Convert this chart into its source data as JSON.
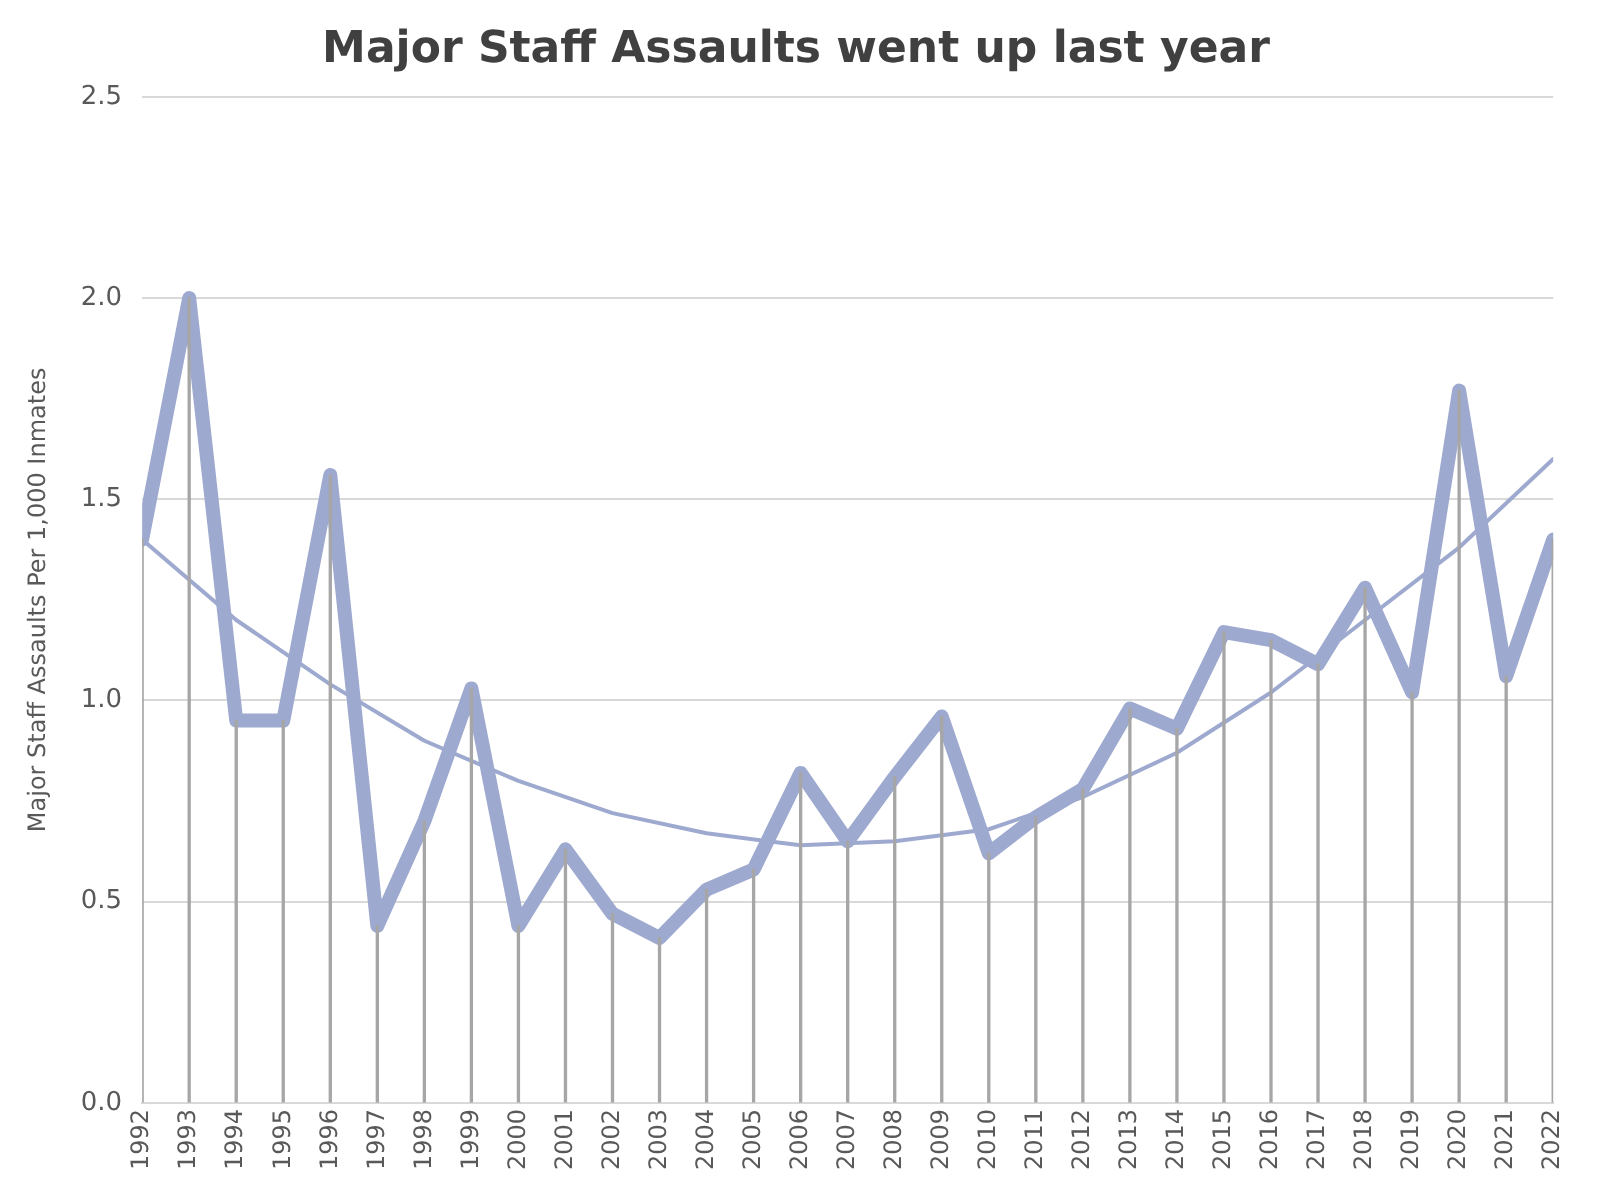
{
  "chart_data": {
    "type": "line",
    "title": "Major Staff Assaults went up last year",
    "ylabel": "Major Staff Assaults Per 1,000 Inmates",
    "xlim": [
      1992,
      2022
    ],
    "xticks": [
      1992,
      1993,
      1994,
      1995,
      1996,
      1997,
      1998,
      1999,
      2000,
      2001,
      2002,
      2003,
      2004,
      2005,
      2006,
      2007,
      2008,
      2009,
      2010,
      2011,
      2012,
      2013,
      2014,
      2015,
      2016,
      2017,
      2018,
      2019,
      2020,
      2021,
      2022
    ],
    "ylim": [
      0,
      2.5
    ],
    "yticks": [
      {
        "value": 0,
        "label": "0.0"
      },
      {
        "value": 0.5,
        "label": "0.5"
      },
      {
        "value": 1,
        "label": "1.0"
      },
      {
        "value": 1.5,
        "label": "1.5"
      },
      {
        "value": 2,
        "label": "2.0"
      },
      {
        "value": 2.5,
        "label": "2.5"
      }
    ],
    "grid": "y",
    "legend": false,
    "marker": "none",
    "series": [
      {
        "type": "bar",
        "color": "#a6a6a6",
        "x": [
          1992,
          1993,
          1994,
          1995,
          1996,
          1997,
          1998,
          1999,
          2000,
          2001,
          2002,
          2003,
          2004,
          2005,
          2006,
          2007,
          2008,
          2009,
          2010,
          2011,
          2012,
          2013,
          2014,
          2015,
          2016,
          2017,
          2018,
          2019,
          2020,
          2021,
          2022
        ],
        "values": [
          1.4,
          2.0,
          0.95,
          0.95,
          1.56,
          0.44,
          0.7,
          1.03,
          0.44,
          0.63,
          0.47,
          0.41,
          0.53,
          0.58,
          0.82,
          0.65,
          0.81,
          0.96,
          0.62,
          0.71,
          0.78,
          0.98,
          0.93,
          1.17,
          1.15,
          1.09,
          1.28,
          1.02,
          1.77,
          1.06,
          1.4
        ]
      },
      {
        "color": "#9ea9cf",
        "x": [
          1992,
          1993,
          1994,
          1995,
          1996,
          1997,
          1998,
          1999,
          2000,
          2001,
          2002,
          2003,
          2004,
          2005,
          2006,
          2007,
          2008,
          2009,
          2010,
          2011,
          2012,
          2013,
          2014,
          2015,
          2016,
          2017,
          2018,
          2019,
          2020,
          2021,
          2022
        ],
        "values": [
          1.4,
          2.0,
          0.95,
          0.95,
          1.56,
          0.44,
          0.7,
          1.03,
          0.44,
          0.63,
          0.47,
          0.41,
          0.53,
          0.58,
          0.82,
          0.65,
          0.81,
          0.96,
          0.62,
          0.71,
          0.78,
          0.98,
          0.93,
          1.17,
          1.15,
          1.09,
          1.28,
          1.02,
          1.77,
          1.06,
          1.4
        ]
      },
      {
        "type": "line",
        "color": "#9ea9cf",
        "x": [
          1992,
          1994,
          1996,
          1998,
          2000,
          2002,
          2004,
          2006,
          2008,
          2010,
          2012,
          2014,
          2016,
          2018,
          2020,
          2022
        ],
        "values": [
          1.4,
          1.2,
          1.04,
          0.9,
          0.8,
          0.72,
          0.67,
          0.64,
          0.65,
          0.68,
          0.76,
          0.87,
          1.02,
          1.2,
          1.38,
          1.6
        ]
      }
    ]
  }
}
